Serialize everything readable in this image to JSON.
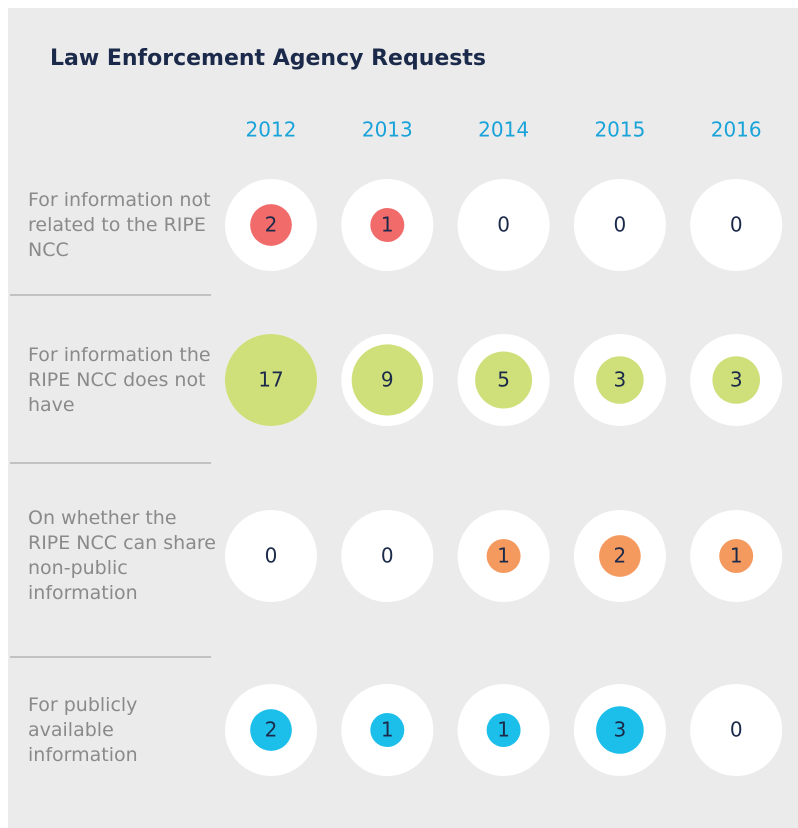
{
  "chart_data": {
    "type": "bubble",
    "title": "Law Enforcement Agency Requests",
    "categories": [
      "2012",
      "2013",
      "2014",
      "2015",
      "2016"
    ],
    "series": [
      {
        "name": "For information not related to the RIPE NCC",
        "color": "#f26b6b",
        "values": [
          2,
          1,
          0,
          0,
          0
        ]
      },
      {
        "name": "For information the RIPE NCC does not have",
        "color": "#cfe07a",
        "values": [
          17,
          9,
          5,
          3,
          3
        ]
      },
      {
        "name": "On whether the RIPE NCC can share non-public information",
        "color": "#f59a5f",
        "values": [
          0,
          0,
          1,
          2,
          1
        ]
      },
      {
        "name": "For publicly available information",
        "color": "#1cbfea",
        "values": [
          2,
          1,
          1,
          3,
          0
        ]
      }
    ]
  }
}
